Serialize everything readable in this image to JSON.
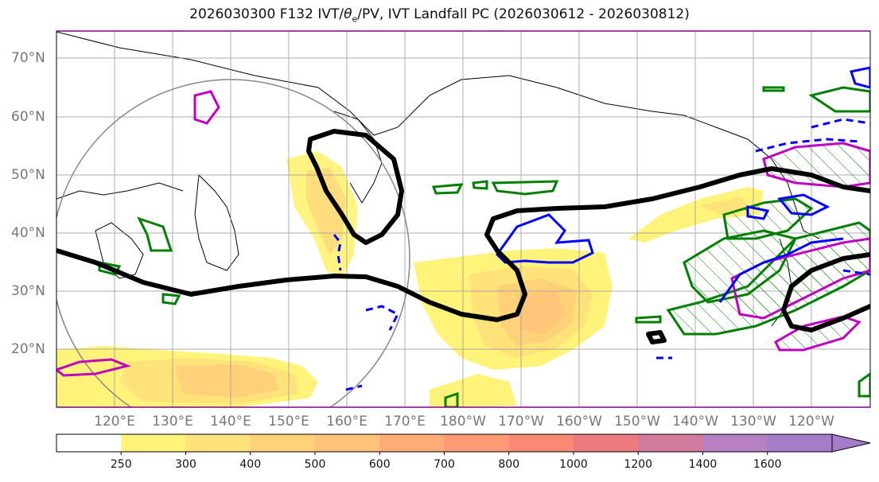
{
  "title": {
    "prefix": "2026030300 F132 IVT/",
    "theta": "θ",
    "theta_sub": "e",
    "suffix": "/PV, IVT Landfall PC (2026030612 - 2026030812)"
  },
  "map": {
    "lat_labels": [
      "70°N",
      "60°N",
      "50°N",
      "40°N",
      "30°N",
      "20°N"
    ],
    "lon_labels": [
      "120°E",
      "130°E",
      "140°E",
      "150°E",
      "160°E",
      "170°E",
      "180°W",
      "170°W",
      "160°W",
      "150°W",
      "140°W",
      "130°W",
      "120°W"
    ],
    "lat_range": [
      10,
      75
    ],
    "lon_range_east": [
      110,
      250
    ],
    "gridlines": true
  },
  "colorbar": {
    "levels": [
      "250",
      "300",
      "400",
      "500",
      "600",
      "700",
      "800",
      "1000",
      "1200",
      "1400",
      "1600"
    ],
    "colors": [
      "#ffffff",
      "#fff37a",
      "#ffe27a",
      "#ffd27a",
      "#ffc37a",
      "#ffad78",
      "#ff9a74",
      "#fb8873",
      "#ec7b7e",
      "#d27a9c",
      "#b780c0",
      "#a57cc9"
    ],
    "extend": "max"
  },
  "fields": {
    "ivt_fill": "yellow-orange shading",
    "pv_contour_color": "#000000",
    "theta_e_positive_color": "#0000ff",
    "green_contour_color": "#007f00",
    "magenta_contour_color": "#c000c0",
    "circle_color": "#888888"
  }
}
